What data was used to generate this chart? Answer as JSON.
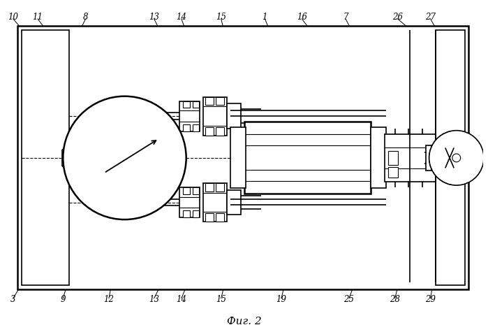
{
  "bg_color": "#ffffff",
  "line_color": "#000000",
  "fig_width": 6.99,
  "fig_height": 4.65,
  "dpi": 100,
  "caption": "Фиг. 2"
}
